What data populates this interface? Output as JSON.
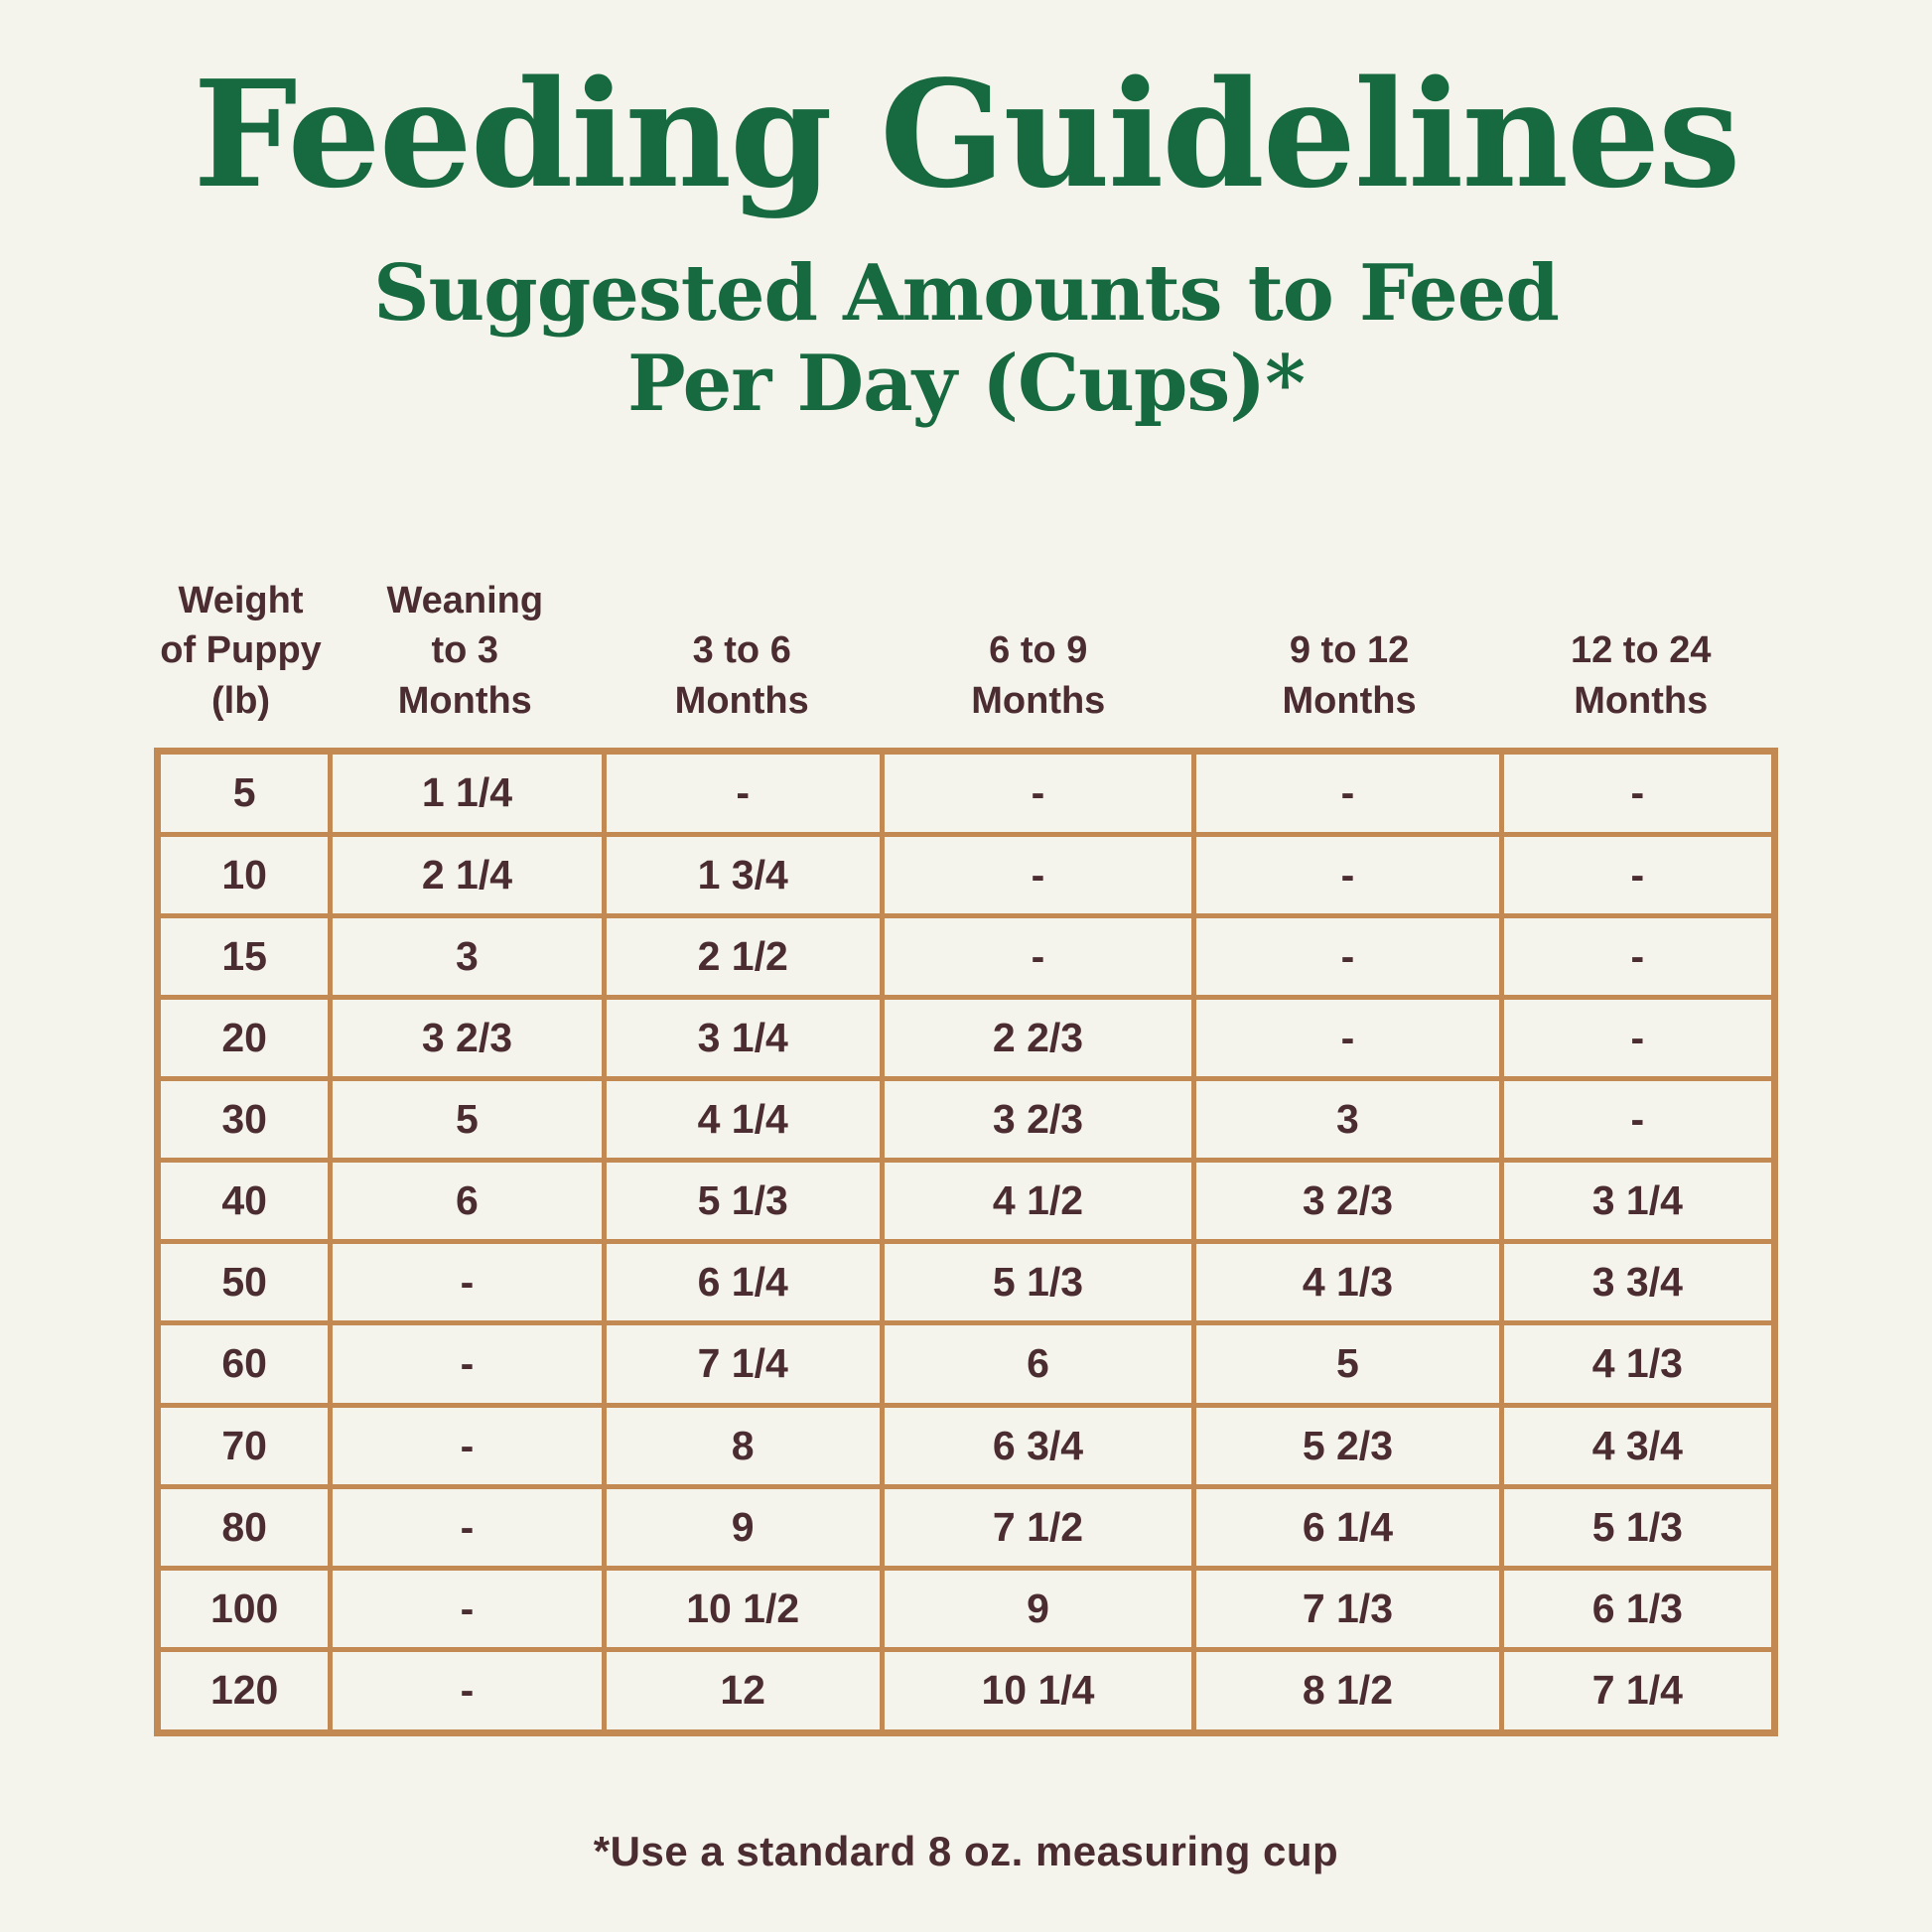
{
  "page": {
    "title": "Feeding Guidelines",
    "subtitle_line1": "Suggested Amounts to Feed",
    "subtitle_line2": "Per Day (Cups)*",
    "footnote": "*Use a standard 8 oz. measuring cup"
  },
  "colors": {
    "background": "#F4F4ED",
    "title_green": "#17693F",
    "table_border": "#C28A52",
    "text_brown": "#4B2D31"
  },
  "table": {
    "headers": [
      "Weight\nof Puppy\n(lb)",
      "Weaning\nto 3\nMonths",
      "3 to 6\nMonths",
      "6 to 9\nMonths",
      "9 to 12\nMonths",
      "12 to 24\nMonths"
    ],
    "rows": [
      [
        "5",
        "1 1/4",
        "-",
        "-",
        "-",
        "-"
      ],
      [
        "10",
        "2 1/4",
        "1 3/4",
        "-",
        "-",
        "-"
      ],
      [
        "15",
        "3",
        "2 1/2",
        "-",
        "-",
        "-"
      ],
      [
        "20",
        "3 2/3",
        "3 1/4",
        "2 2/3",
        "-",
        "-"
      ],
      [
        "30",
        "5",
        "4 1/4",
        "3 2/3",
        "3",
        "-"
      ],
      [
        "40",
        "6",
        "5 1/3",
        "4 1/2",
        "3 2/3",
        "3 1/4"
      ],
      [
        "50",
        "-",
        "6 1/4",
        "5 1/3",
        "4 1/3",
        "3 3/4"
      ],
      [
        "60",
        "-",
        "7 1/4",
        "6",
        "5",
        "4 1/3"
      ],
      [
        "70",
        "-",
        "8",
        "6 3/4",
        "5 2/3",
        "4 3/4"
      ],
      [
        "80",
        "-",
        "9",
        "7 1/2",
        "6 1/4",
        "5 1/3"
      ],
      [
        "100",
        "-",
        "10 1/2",
        "9",
        "7 1/3",
        "6 1/3"
      ],
      [
        "120",
        "-",
        "12",
        "10 1/4",
        "8 1/2",
        "7 1/4"
      ]
    ]
  }
}
